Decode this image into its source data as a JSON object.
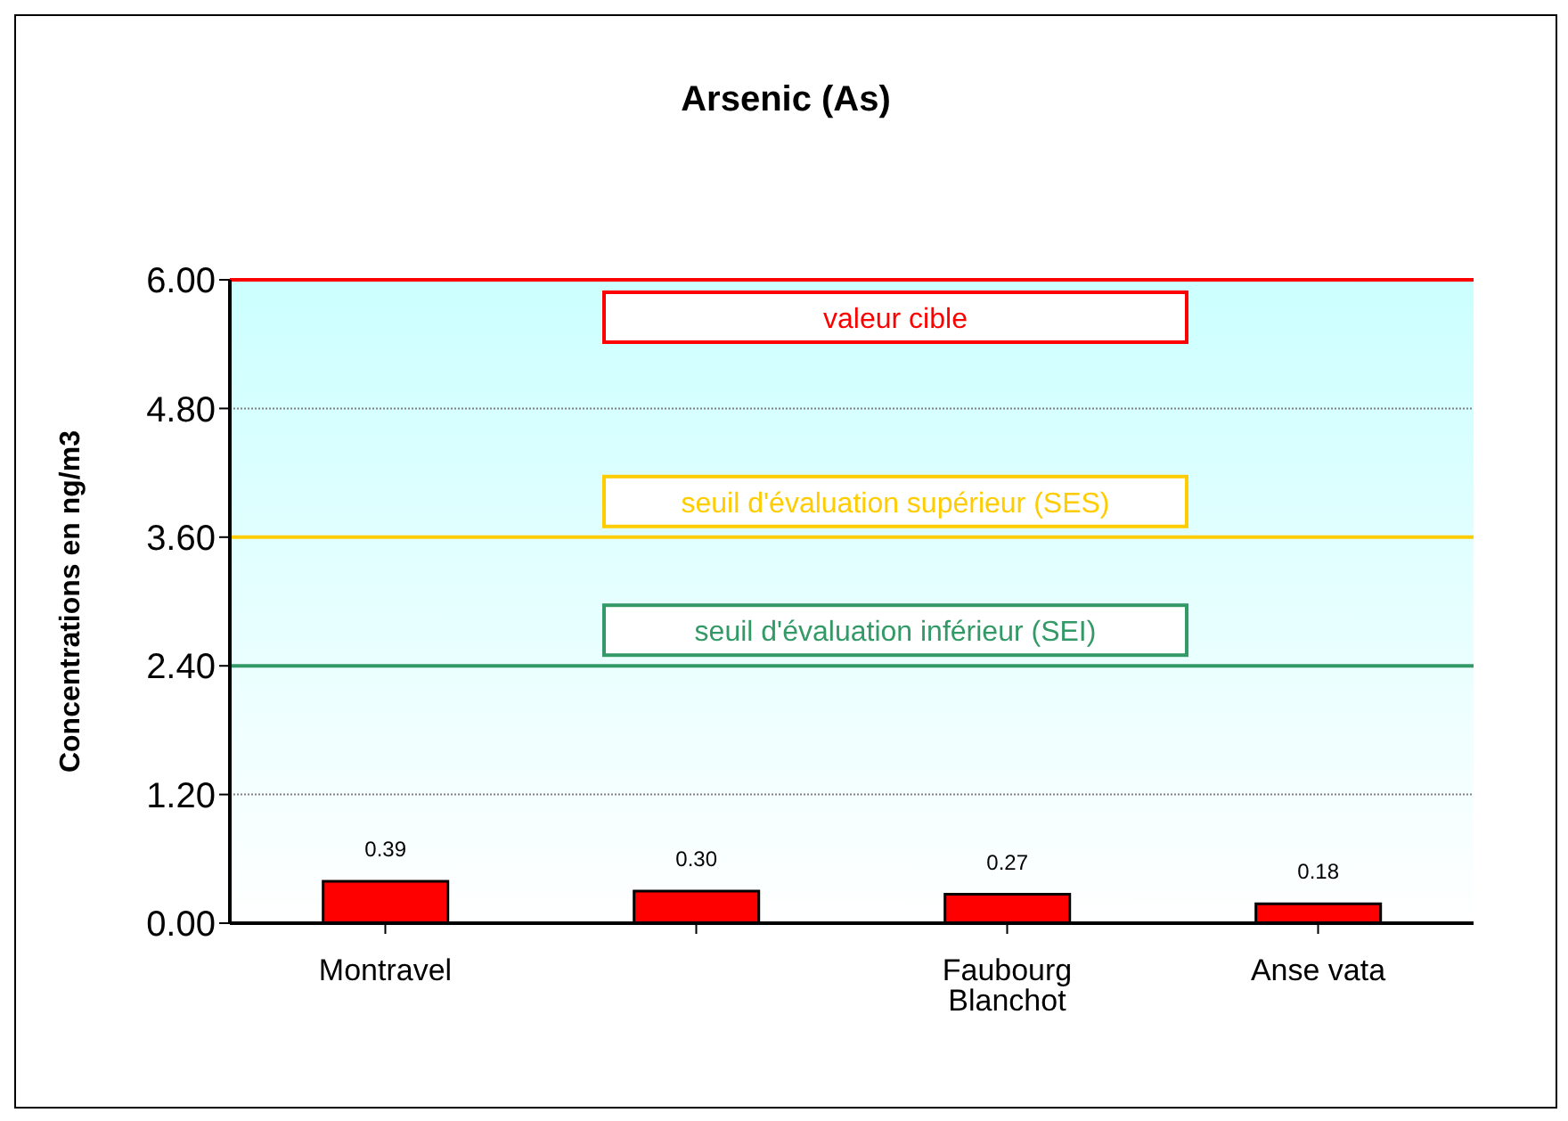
{
  "chart_data": {
    "type": "bar",
    "title": "Arsenic (As)",
    "ylabel": "Concentrations en ng/m3",
    "categories": [
      "Montravel",
      null,
      "Faubourg Blanchot",
      "Anse vata"
    ],
    "values": [
      0.39,
      0.3,
      0.27,
      0.18
    ],
    "color": "#ff0000",
    "value_labels": [
      "0.39",
      "0.30",
      "0.27",
      "0.18"
    ],
    "ylim": [
      0,
      6
    ],
    "yticks": [
      {
        "value": 0,
        "label": "0.00"
      },
      {
        "value": 1.2,
        "label": "1.20"
      },
      {
        "value": 2.4,
        "label": "2.40"
      },
      {
        "value": 3.6,
        "label": "3.60"
      },
      {
        "value": 4.8,
        "label": "4.80"
      },
      {
        "value": 6,
        "label": "6.00"
      }
    ],
    "grid": "y",
    "ref_lines": [
      {
        "axis": "y",
        "value": 6,
        "label": "valeur cible",
        "color": "#ff0000"
      },
      {
        "axis": "y",
        "value": 3.6,
        "label": "seuil d'évaluation supérieur (SES)",
        "color": "#ffcc00"
      },
      {
        "axis": "y",
        "value": 2.4,
        "label": "seuil d'évaluation inférieur (SEI)",
        "color": "#339966"
      }
    ]
  }
}
